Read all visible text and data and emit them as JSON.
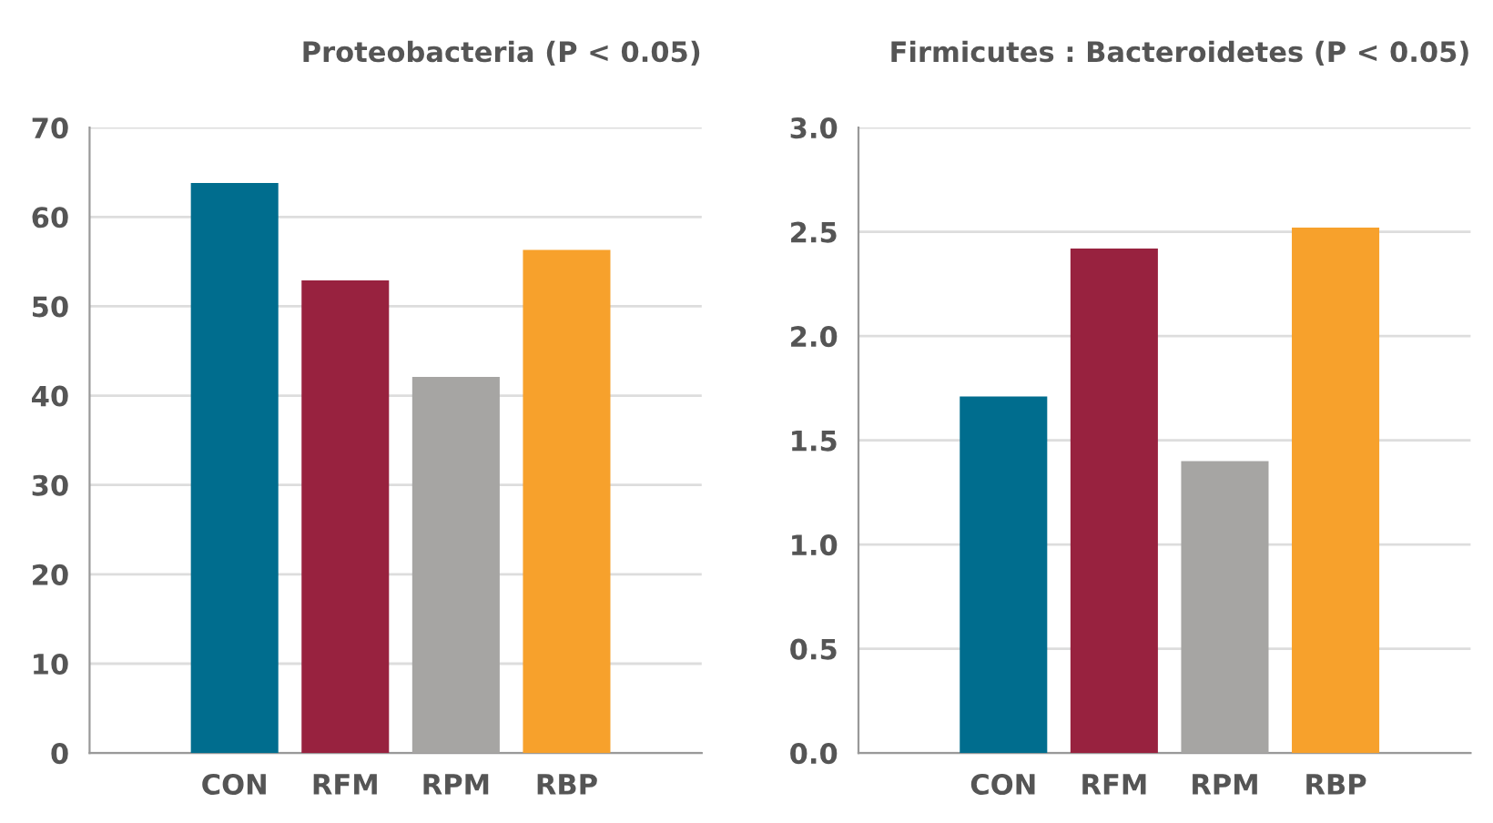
{
  "chart_data": [
    {
      "type": "bar",
      "title": "Proteobacteria (P < 0.05)",
      "categories": [
        "CON",
        "RFM",
        "RPM",
        "RBP"
      ],
      "values": [
        63.8,
        52.9,
        42.1,
        56.3
      ],
      "colors": [
        "#006d8e",
        "#98223f",
        "#a6a5a3",
        "#f7a12c"
      ],
      "ylim": [
        0,
        70
      ],
      "yticks": [
        0,
        10,
        20,
        30,
        40,
        50,
        60,
        70
      ],
      "grid": "y"
    },
    {
      "type": "bar",
      "title": "Firmicutes : Bacteroidetes (P < 0.05)",
      "categories": [
        "CON",
        "RFM",
        "RPM",
        "RBP"
      ],
      "values": [
        1.71,
        2.42,
        1.4,
        2.52
      ],
      "colors": [
        "#006d8e",
        "#98223f",
        "#a6a5a3",
        "#f7a12c"
      ],
      "ylim": [
        0,
        3.0
      ],
      "yticks": [
        {
          "value": 0,
          "label": "0.0"
        },
        0.5,
        {
          "value": 1,
          "label": "1.0"
        },
        1.5,
        {
          "value": 2,
          "label": "2.0"
        },
        2.5,
        {
          "value": 3,
          "label": "3.0"
        }
      ],
      "grid": "y"
    }
  ]
}
